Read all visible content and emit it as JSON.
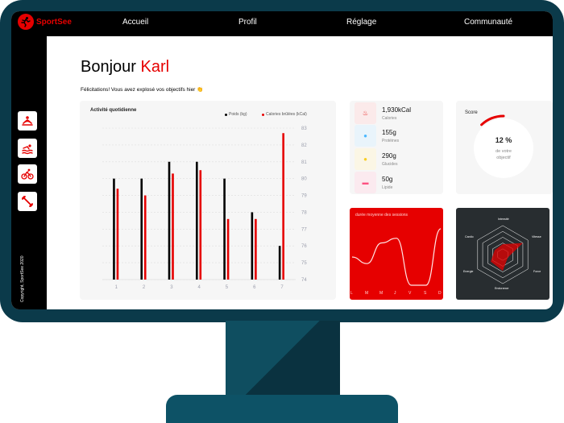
{
  "brand": {
    "name": "SportSee"
  },
  "nav": {
    "items": [
      "Accueil",
      "Profil",
      "Réglage",
      "Communauté"
    ]
  },
  "sidebar": {
    "icons": [
      "yoga-icon",
      "swimming-icon",
      "cycling-icon",
      "dumbbell-icon"
    ],
    "copyright": "Copyright, SportSee 2020"
  },
  "greeting": {
    "prefix": "Bonjour",
    "name": "Karl",
    "subtitle": "Félicitations! Vous avez explosé vos objectifs hier 👏"
  },
  "activity": {
    "title": "Activité quotidienne",
    "legend_weight": "Poids (kg)",
    "legend_calories": "Calories brûlées (kCal)",
    "days": [
      "1",
      "2",
      "3",
      "4",
      "5",
      "6",
      "7"
    ],
    "weight": [
      80,
      80,
      81,
      81,
      80,
      78,
      76
    ],
    "calories": [
      79.4,
      79,
      80.3,
      80.5,
      77.6,
      77.6,
      82.7
    ],
    "y_ticks": [
      "83",
      "82",
      "81",
      "80",
      "79",
      "78",
      "77",
      "76",
      "75",
      "74"
    ],
    "ylim": [
      74,
      83
    ]
  },
  "kpis": [
    {
      "value": "1,930kCal",
      "label": "Calories",
      "icon": "fire-icon",
      "color": "#fbeaea",
      "icon_color": "#e60000"
    },
    {
      "value": "155g",
      "label": "Protéines",
      "icon": "chicken-icon",
      "color": "#e9f4fb",
      "icon_color": "#4ab8ff"
    },
    {
      "value": "290g",
      "label": "Glucides",
      "icon": "apple-icon",
      "color": "#fbf6e5",
      "icon_color": "#f9ce23"
    },
    {
      "value": "50g",
      "label": "Lipide",
      "icon": "burger-icon",
      "color": "#fbeaef",
      "icon_color": "#fd5181"
    }
  ],
  "score": {
    "title": "Score",
    "value_text": "12 %",
    "line1": "de votre",
    "line2": "objectif",
    "fraction": 0.12
  },
  "sessions": {
    "title": "durée moyenne des sessions",
    "days": [
      "L",
      "M",
      "M",
      "J",
      "V",
      "S",
      "D"
    ],
    "values": [
      30,
      23,
      45,
      50,
      0,
      0,
      60
    ]
  },
  "performance": {
    "labels": [
      "Intensité",
      "Vitesse",
      "Force",
      "Endurance",
      "Energie",
      "Cardio"
    ],
    "values": [
      90,
      200,
      50,
      140,
      120,
      80
    ]
  },
  "colors": {
    "accent": "#e60000",
    "dark": "#0b3a4a",
    "black": "#000000"
  }
}
